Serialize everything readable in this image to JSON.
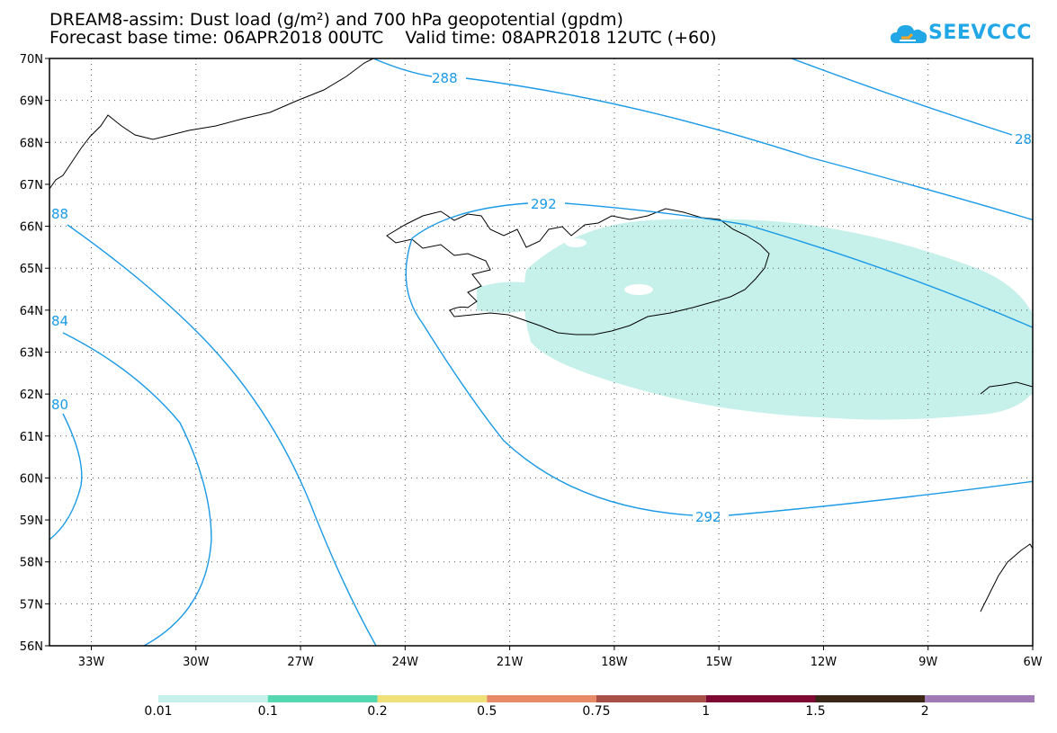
{
  "title": {
    "line1": "DREAM8-assim: Dust load (g/m²) and 700 hPa geopotential (gpdm)",
    "line2": "Forecast base time: 06APR2018 00UTC    Valid time: 08APR2018 12UTC (+60)"
  },
  "logo": {
    "text": "SEEVCCC",
    "color": "#22a7e6"
  },
  "map": {
    "lat_ticks": [
      "70N",
      "69N",
      "68N",
      "67N",
      "66N",
      "65N",
      "64N",
      "63N",
      "62N",
      "61N",
      "60N",
      "59N",
      "58N",
      "57N",
      "56N"
    ],
    "lon_ticks": [
      "33W",
      "30W",
      "27W",
      "24W",
      "21W",
      "18W",
      "15W",
      "12W",
      "9W",
      "6W"
    ],
    "contour_color": "#1a9ae6",
    "contour_labels": [
      "288",
      "292",
      "292",
      "28",
      "88",
      "84",
      "80"
    ]
  },
  "colorbar": {
    "colors": [
      "#c6f0ea",
      "#55d7b2",
      "#f0e07a",
      "#e68a68",
      "#a84f46",
      "#7c0a32",
      "#3b2718",
      "#a07ab5"
    ],
    "labels": [
      "0.01",
      "0.1",
      "0.2",
      "0.5",
      "0.75",
      "1",
      "1.5",
      "2"
    ]
  }
}
